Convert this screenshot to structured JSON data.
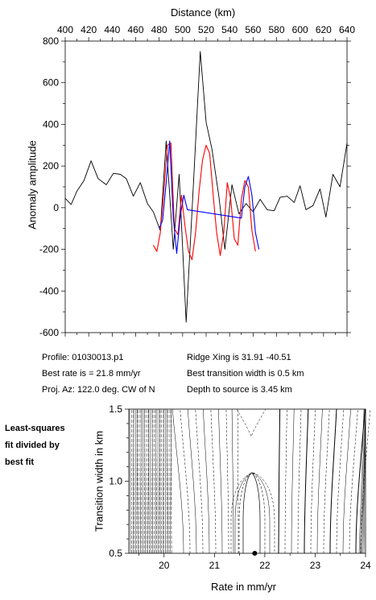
{
  "chart_data": [
    {
      "type": "line",
      "title": "",
      "xlabel": "Distance (km)",
      "ylabel": "Anomaly amplitude",
      "xlim": [
        400,
        640
      ],
      "ylim": [
        -600,
        800
      ],
      "x_ticks": [
        "400",
        "420",
        "440",
        "460",
        "480",
        "500",
        "520",
        "540",
        "560",
        "580",
        "600",
        "620",
        "640"
      ],
      "y_ticks": [
        "800",
        "600",
        "400",
        "200",
        "0",
        "-200",
        "-400",
        "-600"
      ],
      "series": [
        {
          "role": "observed",
          "color": "#000000",
          "x": [
            400,
            405,
            410,
            416,
            422,
            428,
            435,
            441,
            447,
            452,
            458,
            464,
            470,
            475,
            481,
            486,
            492,
            497,
            503,
            509,
            515,
            520,
            525,
            531,
            536,
            542,
            548,
            554,
            560,
            566,
            572,
            578,
            583,
            589,
            595,
            600,
            605,
            611,
            617,
            622,
            628,
            634,
            640
          ],
          "y": [
            45,
            15,
            80,
            130,
            225,
            140,
            110,
            165,
            160,
            140,
            55,
            120,
            20,
            -20,
            -110,
            320,
            -200,
            160,
            -550,
            95,
            750,
            410,
            280,
            50,
            -200,
            110,
            -30,
            20,
            -20,
            40,
            -10,
            -15,
            50,
            55,
            25,
            105,
            -10,
            10,
            90,
            -45,
            160,
            100,
            310
          ]
        },
        {
          "role": "model-red",
          "color": "#ff0000",
          "x": [
            475,
            478,
            481,
            484,
            487,
            490,
            493,
            496,
            499,
            502,
            505,
            508,
            511,
            514,
            517,
            520,
            523,
            526,
            529,
            532,
            535,
            538,
            541,
            544,
            547,
            550,
            553,
            556,
            559,
            562
          ],
          "y": [
            -180,
            -210,
            -120,
            80,
            300,
            310,
            -100,
            -130,
            60,
            -90,
            -210,
            -250,
            -120,
            80,
            230,
            300,
            260,
            60,
            -120,
            -230,
            -120,
            120,
            40,
            -150,
            -180,
            40,
            130,
            100,
            -110,
            -210
          ]
        },
        {
          "role": "model-blue",
          "color": "#0000ff",
          "x": [
            480,
            483,
            486,
            489,
            492,
            495,
            498,
            501,
            504,
            550,
            553,
            556,
            559,
            562,
            565
          ],
          "y": [
            -100,
            -60,
            120,
            320,
            -50,
            -220,
            -40,
            60,
            -10,
            -50,
            100,
            150,
            60,
            -120,
            -200
          ]
        }
      ]
    },
    {
      "type": "contour",
      "xlabel": "Rate in mm/yr",
      "ylabel": "Transition width in km",
      "xlim": [
        19.3,
        24.0
      ],
      "ylim": [
        0.5,
        1.5
      ],
      "x_ticks": [
        "20",
        "21",
        "22",
        "23",
        "24"
      ],
      "y_ticks": [
        "1.5",
        "1.0",
        "0.5"
      ],
      "best_fit_point": {
        "rate": 21.8,
        "width": 0.5
      },
      "panel_label": "Least-squares fit divided by best fit"
    }
  ],
  "info": {
    "profile": "Profile: 01030013.p1",
    "best_rate": "Best rate is = 21.8 mm/yr",
    "proj_az": "Proj. Az: 122.0 deg. CW of N",
    "ridge_xing": "Ridge Xing is 31.91 -40.51",
    "best_width": "Best transition width is 0.5 km",
    "depth": "Depth to source is    3.45 km"
  },
  "colors": {
    "observed": "#000000",
    "model_red": "#ff0000",
    "model_blue": "#0000ff"
  }
}
